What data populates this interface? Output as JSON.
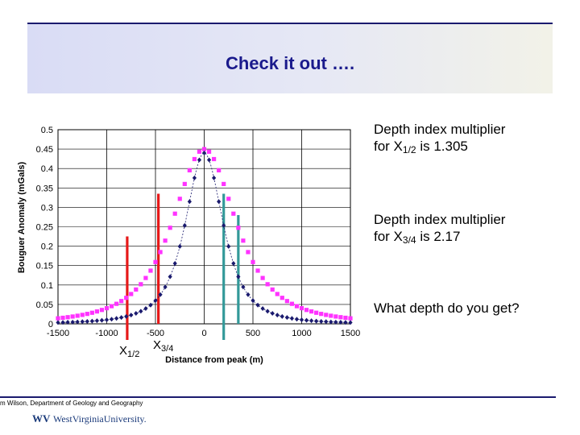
{
  "title": "Check it out ….",
  "notes": [
    {
      "line1": "Depth index multiplier",
      "prefix": "for X",
      "sub": "1/2",
      "suffix": " is 1.305"
    },
    {
      "line1": "Depth index multiplier",
      "prefix": "for X",
      "sub": "3/4",
      "suffix": " is 2.17"
    },
    {
      "line1": "What depth do you get?"
    }
  ],
  "footer": {
    "credit": "m Wilson, Department of Geology and Geography",
    "logo_text": "WestVirginiaUniversity."
  },
  "marker_labels": [
    {
      "main": "X",
      "sub": "1/2"
    },
    {
      "main": "X",
      "sub": "3/4"
    }
  ],
  "colors": {
    "series_wide": "#ff33ff",
    "series_narrow": "#1a1a6e",
    "half_line": "#e61919",
    "threequarter_line": "#339999"
  },
  "chart_data": {
    "type": "scatter",
    "xlabel": "Distance from peak (m)",
    "ylabel": "Bouguer Anomaly (mGals)",
    "xlim": [
      -1500,
      1500
    ],
    "ylim": [
      0,
      0.5
    ],
    "x_ticks": [
      "-1500",
      "-1000",
      "-500",
      "0",
      "500",
      "1000",
      "1500"
    ],
    "y_ticks": [
      "0",
      "0.05",
      "0.1",
      "0.15",
      "0.2",
      "0.25",
      "0.3",
      "0.35",
      "0.4",
      "0.45",
      "0.5"
    ],
    "grid": true,
    "series": [
      {
        "marker": "square",
        "peak": 0.45,
        "depth": 500
      },
      {
        "marker": "diamond",
        "peak": 0.44,
        "depth": 300
      }
    ],
    "vertical_lines": [
      {
        "x": -790,
        "y": 0.225,
        "kind": "half-max",
        "label": "X1/2"
      },
      {
        "x": -470,
        "y": 0.335,
        "kind": "half-max"
      },
      {
        "x": 200,
        "y": 0.335,
        "kind": "three-quarter-max",
        "label": "X3/4"
      },
      {
        "x": 350,
        "y": 0.28,
        "kind": "three-quarter-max"
      }
    ]
  }
}
